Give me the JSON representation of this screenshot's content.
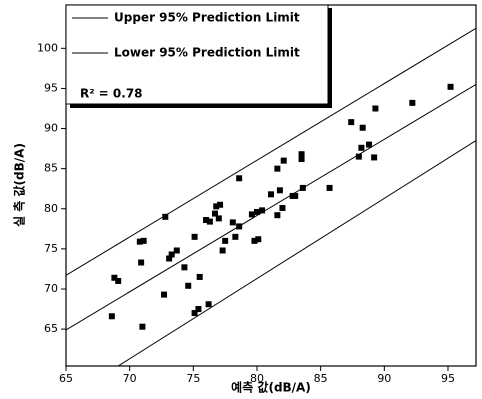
{
  "chart_data": {
    "type": "scatter",
    "xlabel": "예측 값(dB/A)",
    "ylabel": "실 측 값(dB/A)",
    "annotation": "R² = 0.78",
    "xlim": [
      65,
      97.2
    ],
    "ylim": [
      60.4,
      105.4
    ],
    "xticks": [
      65,
      70,
      75,
      80,
      85,
      90,
      95
    ],
    "yticks": [
      65,
      70,
      75,
      80,
      85,
      90,
      95,
      100
    ],
    "color": "#000000",
    "legend": "upper left",
    "lines": [
      {
        "name": "Upper 95% Prediction Limit",
        "x": [
          65,
          97.2
        ],
        "y": [
          71.7,
          102.5
        ]
      },
      {
        "name": "Lower 95% Prediction Limit",
        "x": [
          69.1,
          97.2
        ],
        "y": [
          60.4,
          88.5
        ]
      },
      {
        "x": [
          65,
          97.2
        ],
        "y": [
          64.9,
          95.5
        ]
      }
    ],
    "points": {
      "x": [
        68.6,
        68.8,
        69.1,
        70.8,
        71.1,
        70.9,
        71.0,
        72.8,
        72.7,
        73.1,
        73.3,
        73.7,
        74.3,
        74.6,
        75.1,
        75.1,
        75.4,
        75.5,
        76.0,
        76.3,
        76.2,
        76.7,
        76.8,
        77.1,
        77.0,
        77.3,
        77.5,
        78.1,
        78.3,
        78.6,
        78.6,
        79.6,
        79.8,
        80.0,
        80.1,
        80.4,
        81.1,
        81.6,
        81.6,
        81.8,
        82.1,
        82.0,
        82.8,
        83.0,
        83.5,
        83.5,
        83.6,
        85.7,
        87.4,
        88.0,
        88.2,
        88.3,
        88.8,
        89.3,
        89.2,
        92.2,
        95.2
      ],
      "y": [
        66.6,
        71.4,
        71.0,
        75.9,
        76.0,
        73.3,
        65.3,
        79.0,
        69.3,
        73.8,
        74.3,
        74.8,
        72.7,
        70.4,
        76.5,
        67.0,
        67.5,
        71.5,
        78.6,
        78.4,
        68.1,
        79.4,
        80.3,
        80.5,
        78.8,
        74.8,
        76.0,
        78.3,
        76.5,
        77.8,
        83.8,
        79.3,
        76.0,
        79.6,
        76.2,
        79.8,
        81.8,
        85.0,
        79.2,
        82.3,
        86.0,
        80.1,
        81.6,
        81.6,
        86.2,
        86.8,
        82.6,
        82.6,
        90.8,
        86.5,
        87.6,
        90.1,
        88.0,
        92.5,
        86.4,
        93.2,
        95.2
      ]
    }
  }
}
